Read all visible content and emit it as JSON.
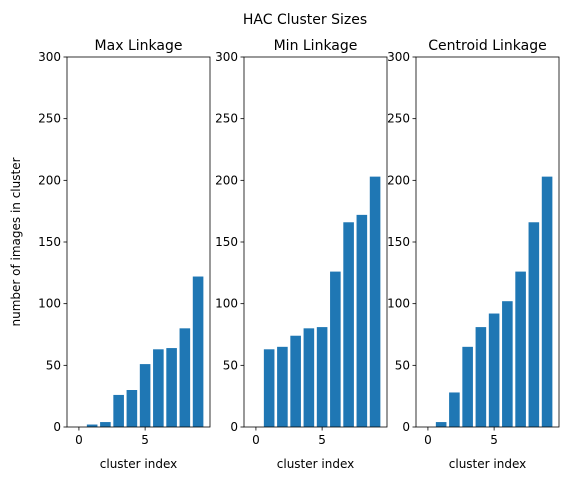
{
  "figure": {
    "title": "HAC Cluster Sizes"
  },
  "chart_data": [
    {
      "type": "bar",
      "title": "Max Linkage",
      "xlabel": "cluster index",
      "ylabel": "number of images in cluster",
      "x": [
        0,
        1,
        2,
        3,
        4,
        5,
        6,
        7,
        8,
        9
      ],
      "values": [
        0,
        2,
        4,
        26,
        30,
        51,
        63,
        64,
        80,
        122
      ],
      "xlim": [
        -0.9,
        9.9
      ],
      "ylim": [
        0,
        300
      ],
      "xticks": [
        0,
        5
      ],
      "yticks": [
        0,
        50,
        100,
        150,
        200,
        250,
        300
      ],
      "color": "#1f77b4",
      "grid": false
    },
    {
      "type": "bar",
      "title": "Min Linkage",
      "xlabel": "cluster index",
      "ylabel": "",
      "x": [
        0,
        1,
        2,
        3,
        4,
        5,
        6,
        7,
        8,
        9
      ],
      "values": [
        0,
        63,
        65,
        74,
        80,
        81,
        126,
        166,
        172,
        203
      ],
      "xlim": [
        -0.9,
        9.9
      ],
      "ylim": [
        0,
        300
      ],
      "xticks": [
        0,
        5
      ],
      "yticks": [
        0,
        50,
        100,
        150,
        200,
        250,
        300
      ],
      "color": "#1f77b4",
      "grid": false
    },
    {
      "type": "bar",
      "title": "Centroid Linkage",
      "xlabel": "cluster index",
      "ylabel": "",
      "x": [
        0,
        1,
        2,
        3,
        4,
        5,
        6,
        7,
        8,
        9
      ],
      "values": [
        0,
        4,
        28,
        65,
        81,
        92,
        102,
        126,
        166,
        203
      ],
      "xlim": [
        -0.9,
        9.9
      ],
      "ylim": [
        0,
        300
      ],
      "xticks": [
        0,
        5
      ],
      "yticks": [
        0,
        50,
        100,
        150,
        200,
        250,
        300
      ],
      "color": "#1f77b4",
      "grid": false
    }
  ]
}
